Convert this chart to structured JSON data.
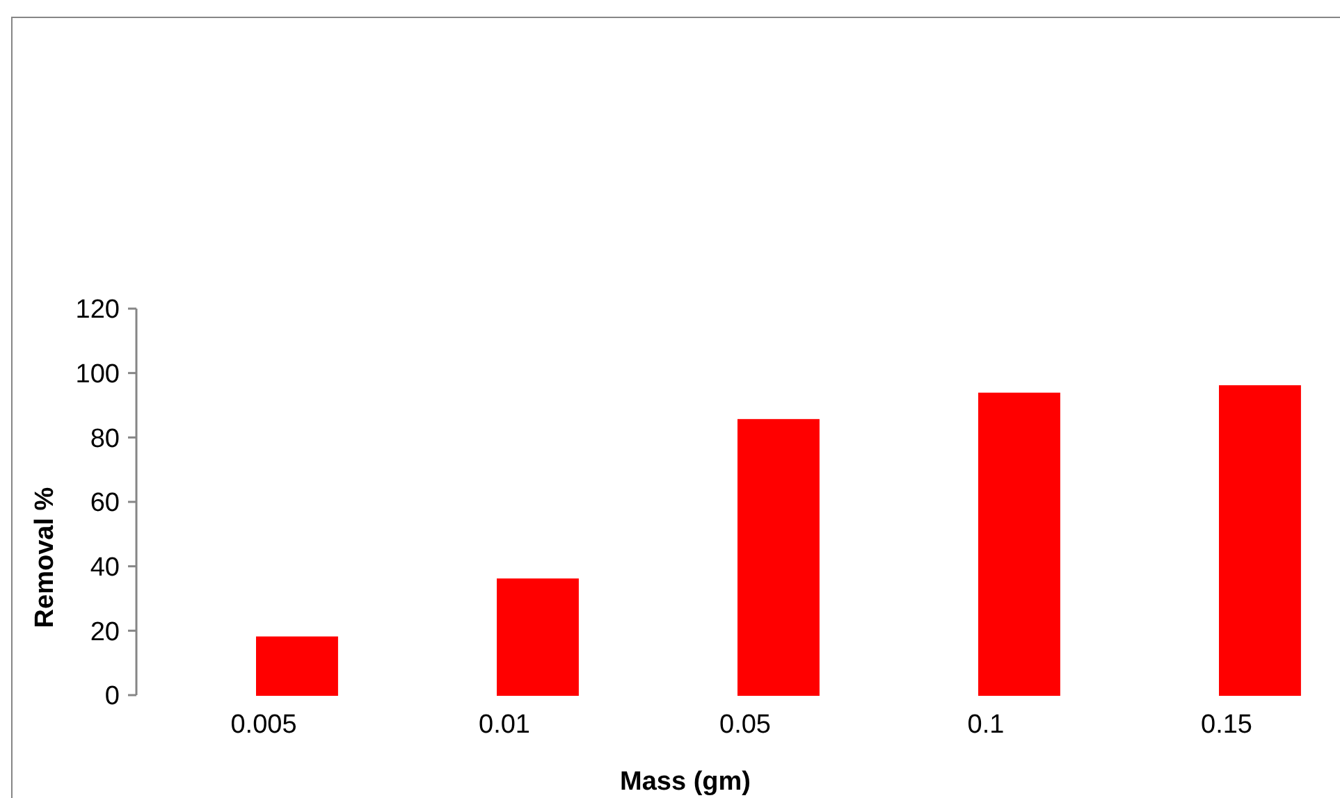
{
  "chart_data": {
    "type": "bar",
    "xlabel": "Mass (gm)",
    "ylabel": "Removal %",
    "categories": [
      "0.005",
      "0.01",
      "0.05",
      "0.1",
      "0.15"
    ],
    "series": [
      {
        "color": "#bdd7ee",
        "values": [
          0,
          0,
          0,
          0,
          0
        ]
      },
      {
        "color": "#ff0000",
        "values": [
          18,
          36,
          85.5,
          93.7,
          96
        ]
      }
    ],
    "ylim": [
      0,
      120
    ],
    "yticks": [
      0,
      20,
      40,
      60,
      80,
      100,
      120
    ],
    "grid": false
  }
}
